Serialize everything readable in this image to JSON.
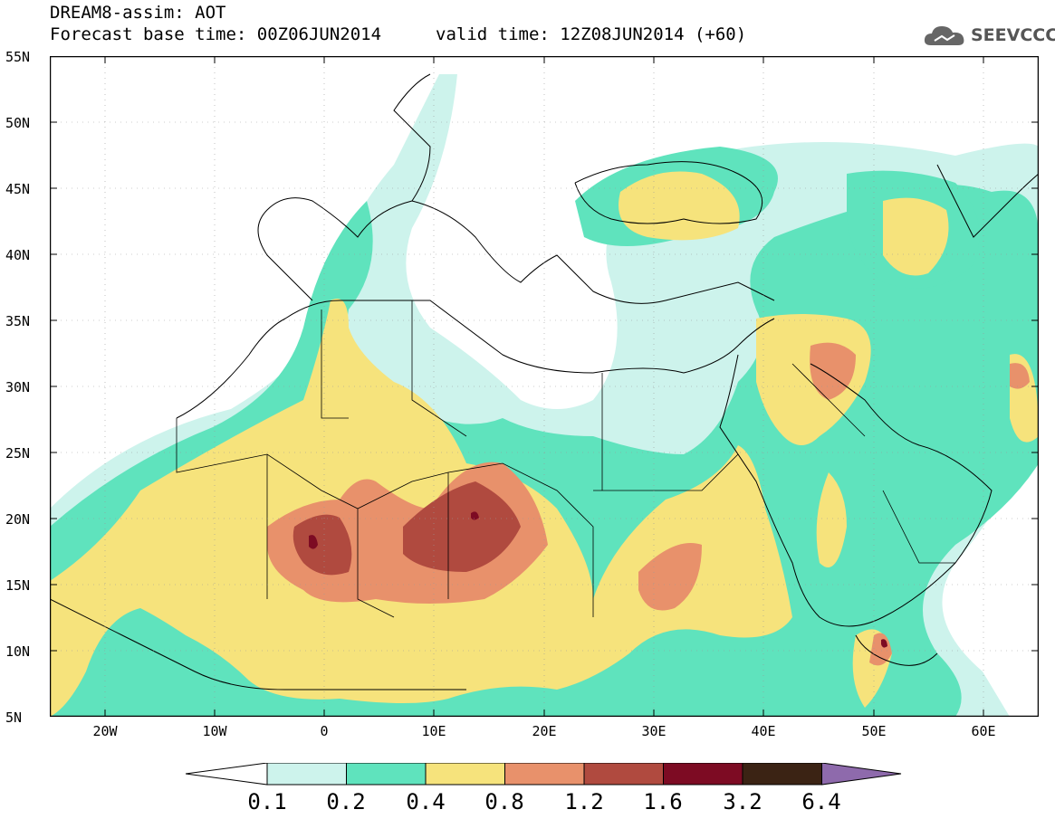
{
  "header": {
    "title": "DREAM8-assim: AOT",
    "forecast_base": "Forecast base time: 00Z06JUN2014",
    "valid_time": "valid time: 12Z08JUN2014 (+60)"
  },
  "logo": {
    "text": "SEEVCCC",
    "icon": "cloud-icon"
  },
  "map": {
    "variable": "AOT",
    "lat_range": [
      5,
      55
    ],
    "lon_range": [
      -25,
      65
    ],
    "lat_labels": [
      "55N",
      "50N",
      "45N",
      "40N",
      "35N",
      "30N",
      "25N",
      "20N",
      "15N",
      "10N",
      "5N"
    ],
    "lon_labels": [
      "20W",
      "10W",
      "0",
      "10E",
      "20E",
      "30E",
      "40E",
      "50E",
      "60E"
    ]
  },
  "colorbar": {
    "labels": [
      "0.1",
      "0.2",
      "0.4",
      "0.8",
      "1.2",
      "1.6",
      "3.2",
      "6.4"
    ],
    "colors": [
      "#cdf3ec",
      "#5fe3bd",
      "#f6e37c",
      "#e8916b",
      "#b04a3f",
      "#7d0b23",
      "#3b2314",
      "#8e6aac"
    ]
  }
}
